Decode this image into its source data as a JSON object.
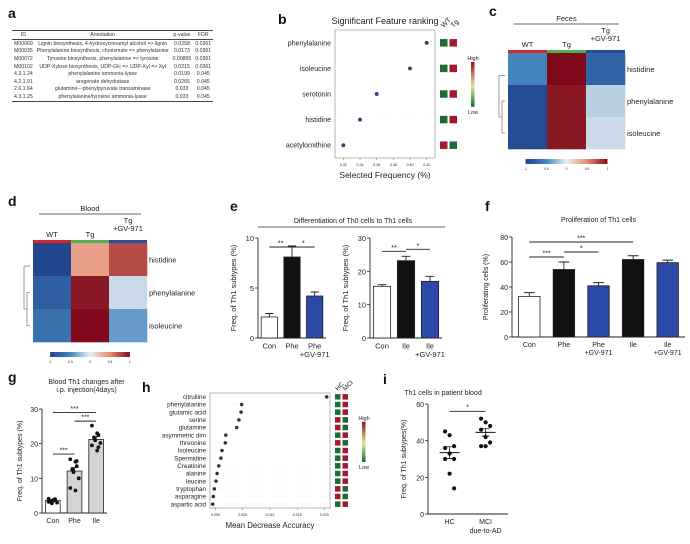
{
  "panel_a": {
    "letter": "a",
    "headers": [
      "ID",
      "Annotation",
      "p-value",
      "FDR"
    ],
    "rows": [
      [
        "M00069",
        "Lignin biosynthesis, 4-hydroxycinnamyl alcohol => lignin",
        "0.0258",
        "0.0361"
      ],
      [
        "M00035",
        "Phenylalanine biosynthesis, chorismate => phenylalanine",
        "0.0173",
        "0.0361"
      ],
      [
        "M00072",
        "Tyrosine biosynthesis, phenylalanine => tyrosine",
        "0.00865",
        "0.0361"
      ],
      [
        "M00102",
        "UDP-Xylose biosynthesis, UDP-Glc => UDP-Xyl => Xyl",
        "0.0215",
        "0.0361"
      ],
      [
        "4.3.1.24",
        "phenylalanine ammonia-lyase",
        "0.0199",
        "0.045"
      ],
      [
        "4.2.1.91",
        "arogenate dehydratase",
        "0.0265",
        "0.045"
      ],
      [
        "2.6.1.64",
        "glutamine---phenylpyruvate transaminase",
        "0.033",
        "0.045"
      ],
      [
        "4.3.1.25",
        "phenylalanine/tyrosine ammonia-lyase",
        "0.033",
        "0.045"
      ]
    ]
  },
  "chart_data": [
    {
      "id": "b",
      "letter": "b",
      "type": "scatter",
      "title": "Significant Feature ranking",
      "xlabel": "Selected Frequency (%)",
      "xlim": [
        0.31,
        0.43
      ],
      "xticks": [
        0.32,
        0.34,
        0.36,
        0.38,
        0.4,
        0.42
      ],
      "xtick_labels": [
        "0.32",
        "0.34",
        "0.36",
        "0.38",
        "0.40",
        "0.42"
      ],
      "categories": [
        "phenylalanine",
        "isoleucine",
        "serotonin",
        "histidine",
        "acetylornithine"
      ],
      "values": [
        0.42,
        0.4,
        0.36,
        0.34,
        0.32
      ],
      "strip_columns": [
        "WT",
        "Tg"
      ],
      "strip": [
        [
          "low",
          "high"
        ],
        [
          "low",
          "high"
        ],
        [
          "low",
          "high"
        ],
        [
          "low",
          "high"
        ],
        [
          "high",
          "low"
        ]
      ],
      "legend": {
        "high": "High",
        "low": "Low"
      },
      "colors": {
        "point": "#3a3f73",
        "high": "#a21a2e",
        "low": "#1e6b35"
      }
    },
    {
      "id": "c",
      "letter": "c",
      "type": "heatmap",
      "group_title": "Feces",
      "columns": [
        "WT",
        "Tg",
        "Tg\n+GV-971"
      ],
      "column_colors": [
        "#d62728",
        "#4caf50",
        "#2b4b9b"
      ],
      "rows": [
        "histidine",
        "phenylalanine",
        "isoleucine"
      ],
      "values": [
        [
          -0.5,
          1.0,
          -0.75
        ],
        [
          -0.95,
          0.95,
          -0.15
        ],
        [
          -0.95,
          0.95,
          -0.1
        ]
      ],
      "colorbar_ticks": [
        "-1",
        "-0.5",
        "0",
        "0.5",
        "1"
      ],
      "vrange": [
        -1,
        1
      ]
    },
    {
      "id": "d",
      "letter": "d",
      "type": "heatmap",
      "group_title": "Blood",
      "columns": [
        "WT",
        "Tg",
        "Tg\n+GV-971"
      ],
      "column_colors": [
        "#d62728",
        "#4caf50",
        "#2b4b9b"
      ],
      "rows": [
        "histidine",
        "phenylalanine",
        "isoleucine"
      ],
      "values": [
        [
          -1.0,
          0.4,
          0.75
        ],
        [
          -0.8,
          0.95,
          -0.1
        ],
        [
          -0.65,
          1.0,
          -0.4
        ]
      ],
      "colorbar_ticks": [
        "-1",
        "-0.5",
        "0",
        "0.5",
        "1"
      ],
      "vrange": [
        -1,
        1
      ]
    },
    {
      "id": "e1",
      "letter": "e",
      "type": "bar",
      "group_title": "Differentiation of Th0 cells to Th1 cells",
      "ylabel": "Freq. of Th1 subtypes (%)",
      "ylim": [
        0,
        10
      ],
      "yticks": [
        0,
        5,
        10
      ],
      "categories": [
        "Con",
        "Phe",
        "Phe\n+GV-971"
      ],
      "values": [
        2.1,
        8.1,
        4.2
      ],
      "errors": [
        0.35,
        1.1,
        0.4
      ],
      "bar_colors": [
        "#ffffff",
        "#111111",
        "#2b4aa8"
      ],
      "significance": [
        {
          "from": 0,
          "to": 1,
          "label": "**",
          "level": 9.1
        },
        {
          "from": 1,
          "to": 2,
          "label": "*",
          "level": 9.1
        }
      ]
    },
    {
      "id": "e2",
      "letter": "",
      "type": "bar",
      "ylabel": "Freq. of Th1 subtypes (%)",
      "ylim": [
        0,
        30
      ],
      "yticks": [
        0,
        10,
        20,
        30
      ],
      "categories": [
        "Con",
        "Ile",
        "Ile\n+GV-971"
      ],
      "values": [
        15.5,
        23.2,
        17.0
      ],
      "errors": [
        0.5,
        1.3,
        1.5
      ],
      "bar_colors": [
        "#ffffff",
        "#111111",
        "#2b4aa8"
      ],
      "significance": [
        {
          "from": 0,
          "to": 1,
          "label": "**",
          "level": 26
        },
        {
          "from": 1,
          "to": 2,
          "label": "*",
          "level": 26.6
        }
      ]
    },
    {
      "id": "f",
      "letter": "f",
      "type": "bar",
      "title": "Proliferation of Th1 cells",
      "ylabel": "Proliferating cells (%)",
      "ylim": [
        0,
        80
      ],
      "yticks": [
        0,
        20,
        40,
        60,
        80
      ],
      "categories": [
        "Con",
        "Phe",
        "Phe\n+GV-971",
        "Ile",
        "Ile\n+GV-971"
      ],
      "values": [
        32.5,
        54.0,
        41.0,
        62.0,
        59.5
      ],
      "errors": [
        3.0,
        6.0,
        2.5,
        3.0,
        2.0
      ],
      "bar_colors": [
        "#ffffff",
        "#111111",
        "#2b4aa8",
        "#111111",
        "#2b4aa8"
      ],
      "significance": [
        {
          "from": 0,
          "to": 3,
          "label": "***",
          "level": 76
        },
        {
          "from": 0,
          "to": 1,
          "label": "***",
          "level": 64
        },
        {
          "from": 1,
          "to": 2,
          "label": "*",
          "level": 68
        }
      ]
    },
    {
      "id": "g",
      "letter": "g",
      "type": "bar",
      "title": "Blood Th1 changes after\ni.p. injection(4days)",
      "ylabel": "Freq. of Th1 subtypes (%)",
      "ylim": [
        0,
        30
      ],
      "yticks": [
        0,
        10,
        20,
        30
      ],
      "categories": [
        "Con",
        "Phe",
        "Ile"
      ],
      "values": [
        3.6,
        12.1,
        21.2
      ],
      "errors": [
        0.3,
        1.0,
        0.8
      ],
      "bar_colors": [
        "#ffffff",
        "#d4d4d4",
        "#d4d4d4"
      ],
      "points": [
        [
          3.2,
          3.8,
          4.0,
          3.5,
          2.8,
          3.0,
          4.1,
          3.6
        ],
        [
          15.5,
          14.8,
          13.5,
          12.5,
          11.8,
          10.0,
          7.2,
          6.5,
          15.0
        ],
        [
          25.2,
          23.0,
          22.5,
          21.8,
          21.0,
          20.2,
          19.5,
          18.0,
          19.0
        ]
      ],
      "significance": [
        {
          "from": 0,
          "to": 2,
          "label": "***",
          "level": 29
        },
        {
          "from": 1,
          "to": 2,
          "label": "***",
          "level": 26.5
        },
        {
          "from": 0,
          "to": 1,
          "label": "***",
          "level": 17
        }
      ]
    },
    {
      "id": "h",
      "letter": "h",
      "type": "scatter",
      "xlabel": "Mean Decrease Accuracy",
      "xlim": [
        -0.001,
        0.021
      ],
      "xticks": [
        0.0,
        0.005,
        0.01,
        0.015,
        0.02
      ],
      "xtick_labels": [
        "0.000",
        "0.005",
        "0.010",
        "0.015",
        "0.020"
      ],
      "categories": [
        "citrulline",
        "phenylalanine",
        "glutamic acid",
        "serine",
        "glutamine",
        "asymmetric dim",
        "threonine",
        "Isoleucine",
        "Spermidine",
        "Creatinine",
        "alanine",
        "leucine",
        "tryptophan",
        "asparagine",
        "aspartic acid"
      ],
      "values": [
        0.0204,
        0.0048,
        0.0047,
        0.0043,
        0.0039,
        0.0019,
        0.0018,
        0.0012,
        0.001,
        0.0006,
        0.0003,
        0.0001,
        -0.0002,
        -0.0004,
        -0.0005
      ],
      "strip_columns": [
        "HC",
        "MCI"
      ],
      "strip": [
        [
          "low",
          "high"
        ],
        [
          "low",
          "high"
        ],
        [
          "low",
          "high"
        ],
        [
          "high",
          "low"
        ],
        [
          "high",
          "low"
        ],
        [
          "low",
          "high"
        ],
        [
          "high",
          "low"
        ],
        [
          "low",
          "high"
        ],
        [
          "low",
          "high"
        ],
        [
          "low",
          "high"
        ],
        [
          "low",
          "high"
        ],
        [
          "low",
          "high"
        ],
        [
          "high",
          "low"
        ],
        [
          "high",
          "low"
        ],
        [
          "low",
          "high"
        ]
      ],
      "legend": {
        "high": "High",
        "low": "Low"
      },
      "colors": {
        "point": "#333333",
        "high": "#a21a2e",
        "low": "#1e6b35"
      }
    },
    {
      "id": "i",
      "letter": "i",
      "type": "scatter",
      "title": "Th1 cells in patient blood",
      "ylabel": "Freq. of Th1 subtypes(%)",
      "ylim": [
        0,
        60
      ],
      "yticks": [
        0,
        20,
        40,
        60
      ],
      "categories": [
        "HC",
        "MCI\ndue-to-AD"
      ],
      "points": [
        [
          45,
          43,
          37,
          36,
          33,
          30,
          30,
          22,
          14
        ],
        [
          52,
          50,
          48,
          46,
          42,
          39,
          37,
          37
        ]
      ],
      "means": [
        33.5,
        44.5
      ],
      "sem": [
        3.2,
        2.0
      ],
      "significance": [
        {
          "from": 0,
          "to": 1,
          "label": "*",
          "level": 56
        }
      ]
    }
  ]
}
